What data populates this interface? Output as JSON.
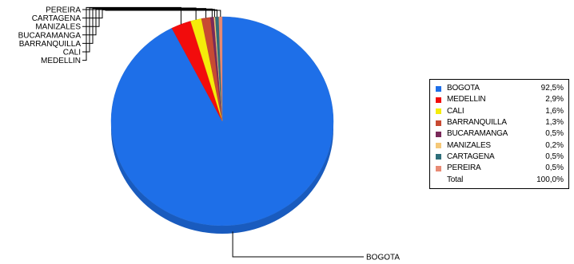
{
  "chart_data": {
    "type": "pie",
    "style": "3d",
    "categories": [
      "BOGOTA",
      "MEDELLIN",
      "CALI",
      "BARRANQUILLA",
      "BUCARAMANGA",
      "MANIZALES",
      "CARTAGENA",
      "PEREIRA"
    ],
    "values": [
      92.5,
      2.9,
      1.6,
      1.3,
      0.5,
      0.2,
      0.5,
      0.5
    ],
    "value_labels": [
      "92,5%",
      "2,9%",
      "1,6%",
      "1,3%",
      "0,5%",
      "0,2%",
      "0,5%",
      "0,5%"
    ],
    "colors": [
      "#1E6FE8",
      "#F20C0C",
      "#F5EC0A",
      "#C84A32",
      "#7A2A5A",
      "#F5C878",
      "#2E6E7A",
      "#E88A74"
    ],
    "pie_labels": {
      "small_slices": [
        "PEREIRA",
        "CARTAGENA",
        "MANIZALES",
        "BUCARAMANGA",
        "BARRANQUILLA",
        "CALI",
        "MEDELLIN"
      ],
      "main_slice": "BOGOTA"
    },
    "legend": {
      "position": "right",
      "entries": [
        {
          "name": "BOGOTA",
          "value": "92,5%",
          "color": "#1E6FE8"
        },
        {
          "name": "MEDELLIN",
          "value": "2,9%",
          "color": "#F20C0C"
        },
        {
          "name": "CALI",
          "value": "1,6%",
          "color": "#F5EC0A"
        },
        {
          "name": "BARRANQUILLA",
          "value": "1,3%",
          "color": "#C84A32"
        },
        {
          "name": "BUCARAMANGA",
          "value": "0,5%",
          "color": "#7A2A5A"
        },
        {
          "name": "MANIZALES",
          "value": "0,2%",
          "color": "#F5C878"
        },
        {
          "name": "CARTAGENA",
          "value": "0,5%",
          "color": "#2E6E7A"
        },
        {
          "name": "PEREIRA",
          "value": "0,5%",
          "color": "#E88A74"
        }
      ],
      "total_label": "Total",
      "total_value": "100,0%"
    }
  }
}
